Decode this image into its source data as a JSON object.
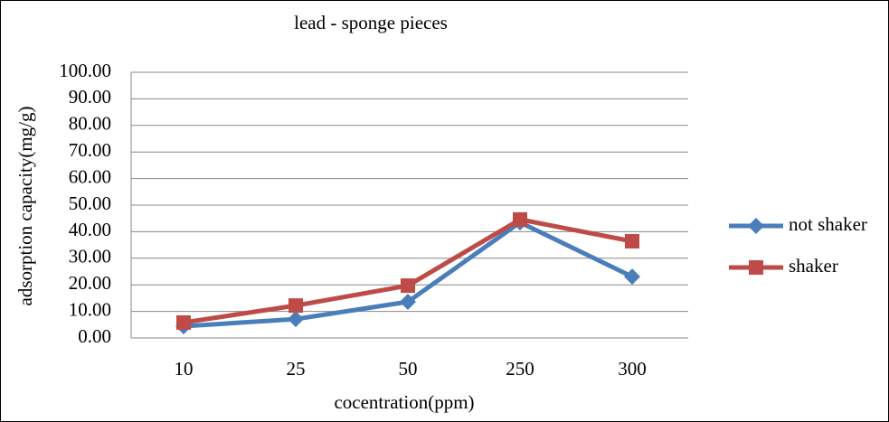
{
  "chart_data": {
    "type": "line",
    "title": "lead - sponge pieces",
    "x_label": "cocentration(ppm)",
    "y_label": "adsorption capacity(mg/g)",
    "categories": [
      "10",
      "25",
      "50",
      "250",
      "300"
    ],
    "series": [
      {
        "name": "not shaker",
        "color": "#4a7ebb",
        "marker": "diamond",
        "values": [
          4.4,
          7.1,
          13.6,
          43.5,
          23.1
        ]
      },
      {
        "name": "shaker",
        "color": "#be4b48",
        "marker": "square",
        "values": [
          5.8,
          12.2,
          19.7,
          44.6,
          36.4
        ]
      }
    ],
    "ylim": [
      0,
      100
    ],
    "yticks": [
      {
        "value": 0,
        "label": "0.00"
      },
      {
        "value": 10,
        "label": "10.00"
      },
      {
        "value": 20,
        "label": "20.00"
      },
      {
        "value": 30,
        "label": "30.00"
      },
      {
        "value": 40,
        "label": "40.00"
      },
      {
        "value": 50,
        "label": "50.00"
      },
      {
        "value": 60,
        "label": "60.00"
      },
      {
        "value": 70,
        "label": "70.00"
      },
      {
        "value": 80,
        "label": "80.00"
      },
      {
        "value": 90,
        "label": "90.00"
      },
      {
        "value": 100,
        "label": "100.00"
      }
    ],
    "grid": true,
    "legend": "right"
  }
}
